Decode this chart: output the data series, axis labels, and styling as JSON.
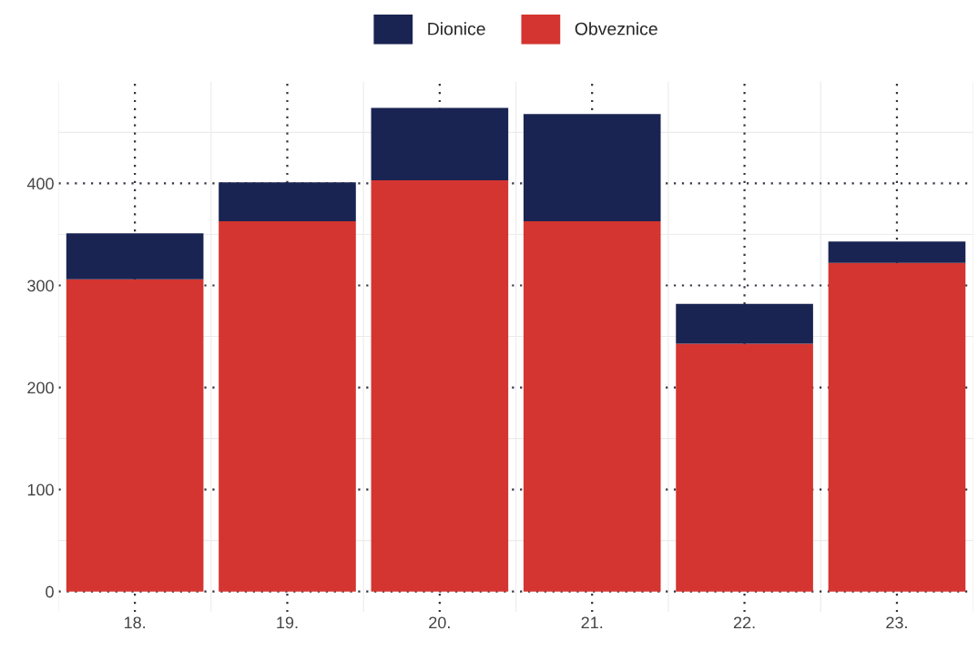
{
  "chart_data": {
    "type": "bar",
    "stacked": true,
    "categories": [
      "18.",
      "19.",
      "20.",
      "21.",
      "22.",
      "23."
    ],
    "series": [
      {
        "name": "Obveznice",
        "color": "#d43530",
        "values": [
          306,
          363,
          403,
          363,
          243,
          322
        ]
      },
      {
        "name": "Dionice",
        "color": "#1a2452",
        "values": [
          45,
          38,
          71,
          105,
          39,
          21
        ]
      }
    ],
    "ylim": [
      -20,
      500
    ],
    "yticks": [
      0,
      100,
      200,
      300,
      400
    ],
    "grid": true,
    "legend": "top"
  }
}
